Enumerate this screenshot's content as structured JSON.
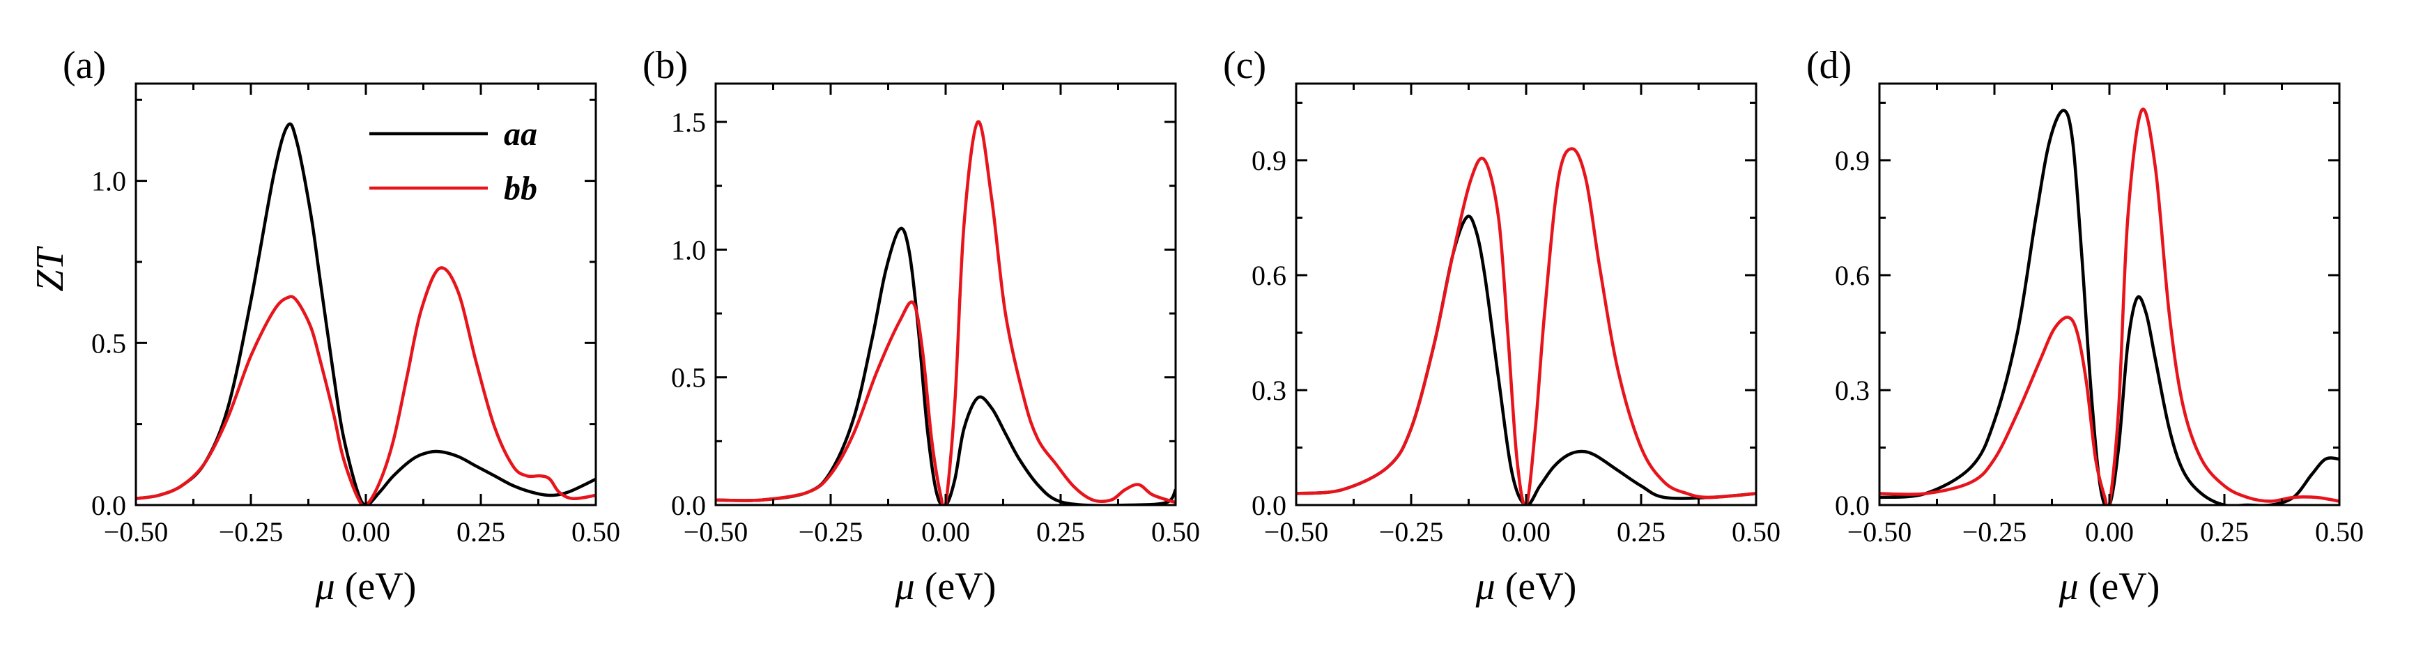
{
  "chart_data": [
    {
      "type": "line",
      "panel": "(a)",
      "xlabel_symbol": "μ",
      "xlabel_unit": " (eV)",
      "ylabel_main": "Z",
      "ylabel_sub": "T",
      "xlim": [
        -0.5,
        0.5
      ],
      "ylim": [
        0,
        1.3
      ],
      "xticks": [
        -0.5,
        -0.25,
        0.0,
        0.25,
        0.5
      ],
      "xtick_labels": [
        "−0.50",
        "−0.25",
        "0.00",
        "0.25",
        "0.50"
      ],
      "yticks": [
        0.0,
        0.5,
        1.0
      ],
      "ytick_labels": [
        "0.0",
        "0.5",
        "1.0"
      ],
      "legend": [
        {
          "name": "aa",
          "color": "#000000"
        },
        {
          "name": "bb",
          "color": "#e8141c"
        }
      ],
      "series": [
        {
          "name": "aa",
          "color": "#000000",
          "x": [
            -0.5,
            -0.45,
            -0.4,
            -0.35,
            -0.3,
            -0.25,
            -0.2,
            -0.17,
            -0.15,
            -0.12,
            -0.1,
            -0.07,
            -0.05,
            -0.02,
            0.0,
            0.03,
            0.06,
            0.1,
            0.13,
            0.16,
            0.2,
            0.24,
            0.28,
            0.32,
            0.36,
            0.4,
            0.44,
            0.5
          ],
          "y": [
            0.02,
            0.03,
            0.06,
            0.13,
            0.3,
            0.63,
            1.02,
            1.17,
            1.12,
            0.9,
            0.7,
            0.4,
            0.22,
            0.05,
            0.0,
            0.04,
            0.09,
            0.14,
            0.16,
            0.165,
            0.15,
            0.12,
            0.09,
            0.06,
            0.04,
            0.03,
            0.04,
            0.08
          ]
        },
        {
          "name": "bb",
          "color": "#e8141c",
          "x": [
            -0.5,
            -0.45,
            -0.4,
            -0.35,
            -0.3,
            -0.25,
            -0.2,
            -0.17,
            -0.15,
            -0.12,
            -0.1,
            -0.07,
            -0.05,
            -0.02,
            0.0,
            0.03,
            0.06,
            0.09,
            0.12,
            0.16,
            0.2,
            0.24,
            0.28,
            0.32,
            0.35,
            0.38,
            0.4,
            0.42,
            0.45,
            0.5
          ],
          "y": [
            0.02,
            0.03,
            0.06,
            0.13,
            0.27,
            0.46,
            0.6,
            0.64,
            0.63,
            0.55,
            0.45,
            0.28,
            0.15,
            0.03,
            0.0,
            0.07,
            0.2,
            0.4,
            0.6,
            0.73,
            0.66,
            0.44,
            0.24,
            0.12,
            0.09,
            0.09,
            0.08,
            0.04,
            0.02,
            0.03
          ]
        }
      ]
    },
    {
      "type": "line",
      "panel": "(b)",
      "xlabel_symbol": "μ",
      "xlabel_unit": " (eV)",
      "xlim": [
        -0.5,
        0.5
      ],
      "ylim": [
        0,
        1.65
      ],
      "xticks": [
        -0.5,
        -0.25,
        0.0,
        0.25,
        0.5
      ],
      "xtick_labels": [
        "−0.50",
        "−0.25",
        "0.00",
        "0.25",
        "0.50"
      ],
      "yticks": [
        0.0,
        0.5,
        1.0,
        1.5
      ],
      "ytick_labels": [
        "0.0",
        "0.5",
        "1.0",
        "1.5"
      ],
      "series": [
        {
          "name": "aa",
          "color": "#000000",
          "x": [
            -0.5,
            -0.4,
            -0.3,
            -0.25,
            -0.2,
            -0.16,
            -0.13,
            -0.1,
            -0.08,
            -0.06,
            -0.04,
            -0.02,
            0.0,
            0.02,
            0.04,
            0.07,
            0.1,
            0.13,
            0.16,
            0.2,
            0.24,
            0.3,
            0.4,
            0.48,
            0.5
          ],
          "y": [
            0.02,
            0.02,
            0.05,
            0.13,
            0.34,
            0.65,
            0.92,
            1.08,
            1.0,
            0.7,
            0.3,
            0.05,
            0.0,
            0.1,
            0.3,
            0.42,
            0.38,
            0.28,
            0.18,
            0.08,
            0.02,
            0.0,
            0.0,
            0.01,
            0.06
          ]
        },
        {
          "name": "bb",
          "color": "#e8141c",
          "x": [
            -0.5,
            -0.4,
            -0.3,
            -0.25,
            -0.2,
            -0.15,
            -0.1,
            -0.07,
            -0.05,
            -0.03,
            -0.01,
            0.0,
            0.02,
            0.04,
            0.07,
            0.1,
            0.13,
            0.17,
            0.2,
            0.24,
            0.28,
            0.32,
            0.36,
            0.39,
            0.42,
            0.45,
            0.5
          ],
          "y": [
            0.02,
            0.02,
            0.05,
            0.12,
            0.28,
            0.52,
            0.72,
            0.79,
            0.6,
            0.25,
            0.03,
            0.0,
            0.4,
            1.1,
            1.5,
            1.2,
            0.75,
            0.42,
            0.26,
            0.16,
            0.07,
            0.02,
            0.02,
            0.06,
            0.08,
            0.04,
            0.01
          ]
        }
      ]
    },
    {
      "type": "line",
      "panel": "(c)",
      "xlabel_symbol": "μ",
      "xlabel_unit": " (eV)",
      "xlim": [
        -0.5,
        0.5
      ],
      "ylim": [
        0,
        1.1
      ],
      "xticks": [
        -0.5,
        -0.25,
        0.0,
        0.25,
        0.5
      ],
      "xtick_labels": [
        "−0.50",
        "−0.25",
        "0.00",
        "0.25",
        "0.50"
      ],
      "yticks": [
        0.0,
        0.3,
        0.6,
        0.9
      ],
      "ytick_labels": [
        "0.0",
        "0.3",
        "0.6",
        "0.9"
      ],
      "series": [
        {
          "name": "aa",
          "color": "#000000",
          "x": [
            -0.5,
            -0.4,
            -0.3,
            -0.25,
            -0.2,
            -0.16,
            -0.13,
            -0.11,
            -0.09,
            -0.06,
            -0.03,
            0.0,
            0.03,
            0.06,
            0.09,
            0.12,
            0.15,
            0.2,
            0.25,
            0.3,
            0.4,
            0.5
          ],
          "y": [
            0.03,
            0.04,
            0.1,
            0.2,
            0.42,
            0.65,
            0.75,
            0.72,
            0.6,
            0.33,
            0.08,
            0.0,
            0.05,
            0.1,
            0.13,
            0.14,
            0.13,
            0.09,
            0.05,
            0.02,
            0.02,
            0.03
          ]
        },
        {
          "name": "bb",
          "color": "#e8141c",
          "x": [
            -0.5,
            -0.4,
            -0.3,
            -0.25,
            -0.2,
            -0.16,
            -0.12,
            -0.09,
            -0.06,
            -0.04,
            -0.02,
            0.0,
            0.02,
            0.04,
            0.07,
            0.1,
            0.13,
            0.16,
            0.2,
            0.25,
            0.3,
            0.35,
            0.4,
            0.5
          ],
          "y": [
            0.03,
            0.04,
            0.1,
            0.2,
            0.42,
            0.65,
            0.85,
            0.9,
            0.75,
            0.45,
            0.12,
            0.0,
            0.2,
            0.5,
            0.85,
            0.93,
            0.85,
            0.62,
            0.35,
            0.15,
            0.06,
            0.03,
            0.02,
            0.03
          ]
        }
      ]
    },
    {
      "type": "line",
      "panel": "(d)",
      "xlabel_symbol": "μ",
      "xlabel_unit": " (eV)",
      "xlim": [
        -0.5,
        0.5
      ],
      "ylim": [
        0,
        1.1
      ],
      "xticks": [
        -0.5,
        -0.25,
        0.0,
        0.25,
        0.5
      ],
      "xtick_labels": [
        "−0.50",
        "−0.25",
        "0.00",
        "0.25",
        "0.50"
      ],
      "yticks": [
        0.0,
        0.3,
        0.6,
        0.9
      ],
      "ytick_labels": [
        "0.0",
        "0.3",
        "0.6",
        "0.9"
      ],
      "series": [
        {
          "name": "aa",
          "color": "#000000",
          "x": [
            -0.5,
            -0.4,
            -0.3,
            -0.25,
            -0.2,
            -0.16,
            -0.13,
            -0.1,
            -0.08,
            -0.06,
            -0.04,
            -0.02,
            0.0,
            0.02,
            0.04,
            0.06,
            0.08,
            0.1,
            0.13,
            0.16,
            0.2,
            0.25,
            0.3,
            0.35,
            0.4,
            0.44,
            0.47,
            0.5
          ],
          "y": [
            0.02,
            0.03,
            0.1,
            0.22,
            0.45,
            0.75,
            0.95,
            1.03,
            0.95,
            0.65,
            0.3,
            0.05,
            0.0,
            0.15,
            0.42,
            0.54,
            0.5,
            0.38,
            0.2,
            0.09,
            0.03,
            0.0,
            0.0,
            0.0,
            0.02,
            0.08,
            0.12,
            0.12
          ]
        },
        {
          "name": "bb",
          "color": "#e8141c",
          "x": [
            -0.5,
            -0.4,
            -0.3,
            -0.25,
            -0.2,
            -0.15,
            -0.12,
            -0.09,
            -0.07,
            -0.05,
            -0.03,
            -0.01,
            0.0,
            0.02,
            0.04,
            0.07,
            0.1,
            0.13,
            0.16,
            0.2,
            0.25,
            0.3,
            0.35,
            0.4,
            0.45,
            0.5
          ],
          "y": [
            0.03,
            0.03,
            0.06,
            0.12,
            0.24,
            0.38,
            0.46,
            0.49,
            0.45,
            0.32,
            0.12,
            0.02,
            0.0,
            0.25,
            0.75,
            1.03,
            0.88,
            0.5,
            0.26,
            0.12,
            0.05,
            0.02,
            0.01,
            0.02,
            0.02,
            0.01
          ]
        }
      ]
    }
  ]
}
